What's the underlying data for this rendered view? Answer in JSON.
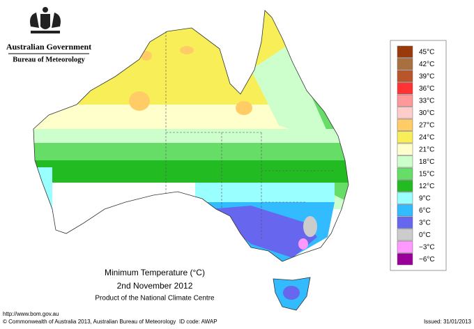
{
  "header": {
    "government": "Australian Government",
    "bureau": "Bureau of Meteorology"
  },
  "legend": [
    {
      "label": "45°C",
      "color": "#9a3a0c"
    },
    {
      "label": "42°C",
      "color": "#a8703f"
    },
    {
      "label": "39°C",
      "color": "#b8552a"
    },
    {
      "label": "36°C",
      "color": "#ff3333"
    },
    {
      "label": "33°C",
      "color": "#ff9999"
    },
    {
      "label": "30°C",
      "color": "#ffcccc"
    },
    {
      "label": "27°C",
      "color": "#ffcc66"
    },
    {
      "label": "24°C",
      "color": "#f8ef58"
    },
    {
      "label": "21°C",
      "color": "#ffffcc"
    },
    {
      "label": "18°C",
      "color": "#ccffcc"
    },
    {
      "label": "15°C",
      "color": "#66dd66"
    },
    {
      "label": "12°C",
      "color": "#22bb22"
    },
    {
      "label": "9°C",
      "color": "#99ffff"
    },
    {
      "label": "6°C",
      "color": "#33bbff"
    },
    {
      "label": "3°C",
      "color": "#6666ee"
    },
    {
      "label": "0°C",
      "color": "#cccccc"
    },
    {
      "label": "−3°C",
      "color": "#ff99ff"
    },
    {
      "label": "−6°C",
      "color": "#990099"
    }
  ],
  "title": {
    "line1": "Minimum Temperature (°C)",
    "line2": "2nd November 2012",
    "line3": "Product of the National Climate Centre"
  },
  "footer": {
    "url": "http://www.bom.gov.au",
    "copyright": "© Commonwealth of Australia 2013, Australian Bureau of Meteorology",
    "id": "ID code: AWAP",
    "issued": "Issued: 31/01/2013"
  }
}
